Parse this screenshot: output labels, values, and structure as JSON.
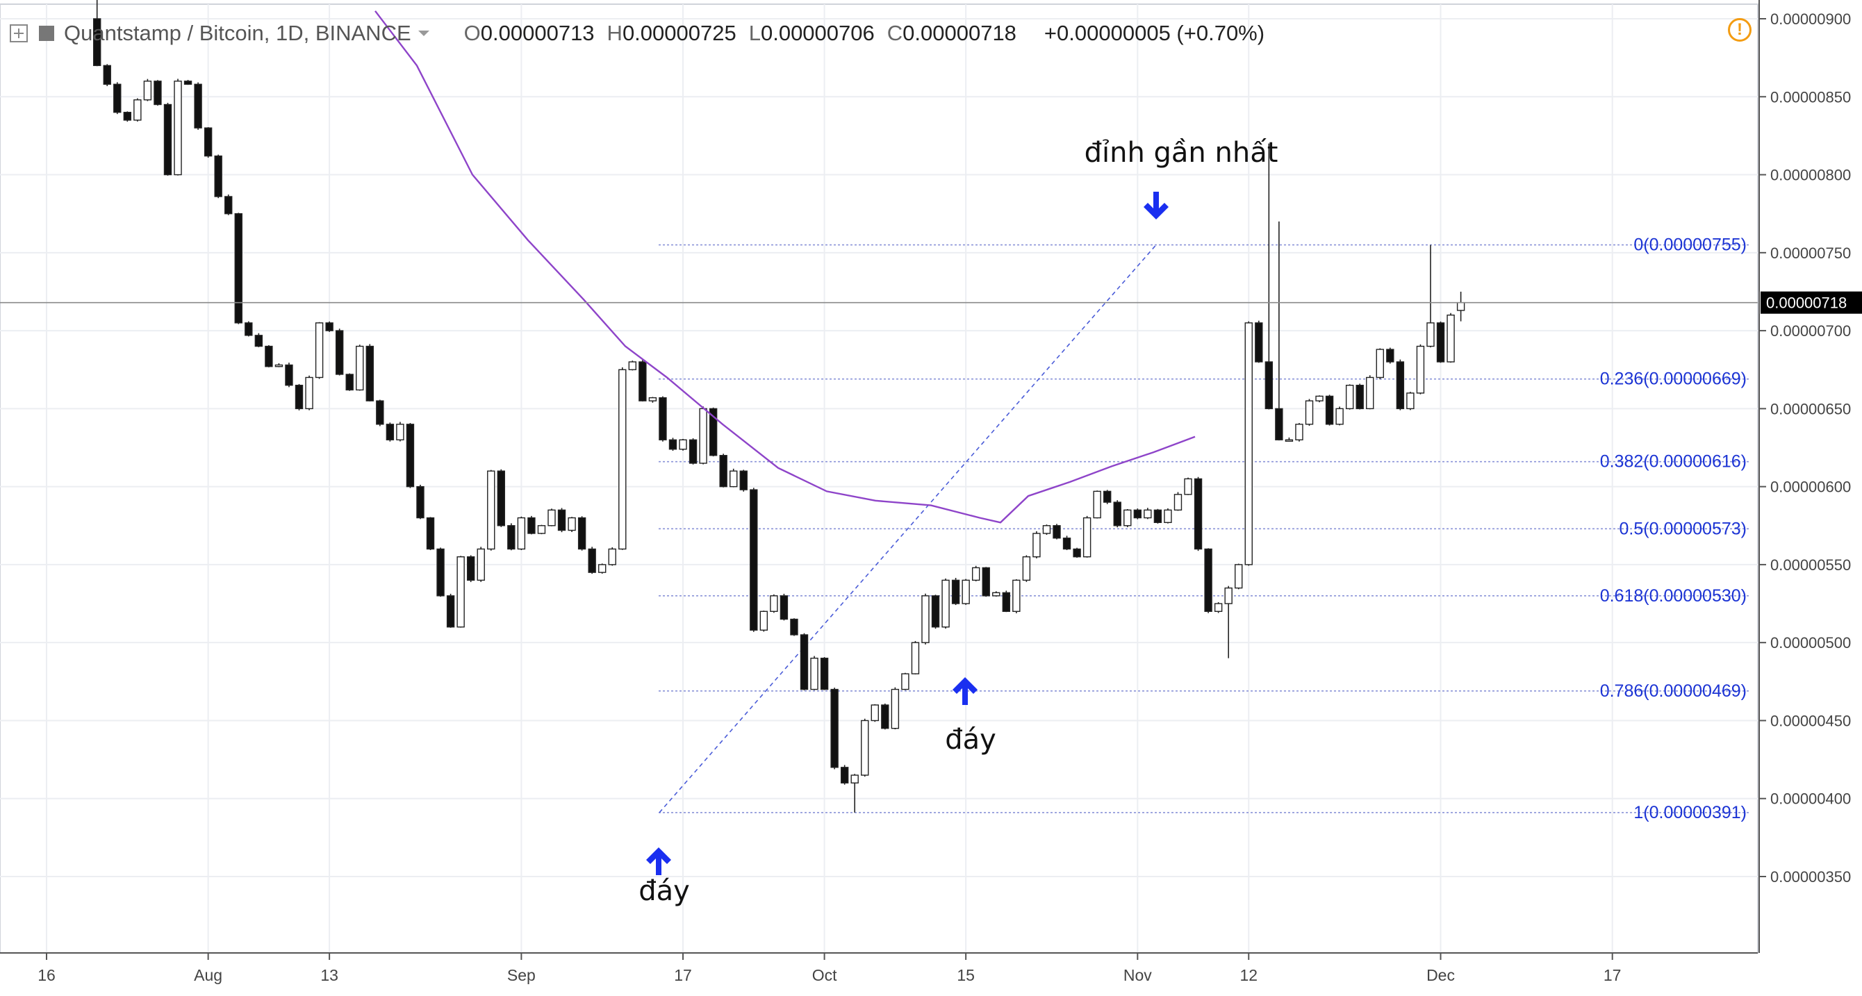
{
  "header": {
    "symbol": "Quantstamp / Bitcoin, 1D, BINANCE",
    "open_key": "O",
    "open": "0.00000713",
    "high_key": "H",
    "high": "0.00000725",
    "low_key": "L",
    "low": "0.00000706",
    "close_key": "C",
    "close": "0.00000718",
    "change": "+0.00000005 (+0.70%)"
  },
  "price_label": "0.00000718",
  "colors": {
    "ma_line": "#8e44c9",
    "fib_text": "#1c34d4",
    "arrow": "#1a2ff0",
    "candle_bear": "#111111",
    "warning": "#f39c12"
  },
  "annotations": {
    "peak": "đỉnh gần nhất",
    "bottom1": "đáy",
    "bottom2": "đáy"
  },
  "chart_data": {
    "type": "candlestick",
    "title": "Quantstamp / Bitcoin, 1D, BINANCE",
    "x_tick_labels": [
      "16",
      "Aug",
      "13",
      "Sep",
      "17",
      "Oct",
      "15",
      "Nov",
      "12",
      "Dec",
      "17"
    ],
    "y_tick_labels": [
      "0.00000900",
      "0.00000850",
      "0.00000800",
      "0.00000750",
      "0.00000700",
      "0.00000650",
      "0.00000600",
      "0.00000550",
      "0.00000500",
      "0.00000450",
      "0.00000400",
      "0.00000350"
    ],
    "ylim": [
      2.9e-06,
      9e-06
    ],
    "grid": true,
    "fibonacci": [
      {
        "label": "0(0.00000755)",
        "value": 7.55e-06
      },
      {
        "label": "0.236(0.00000669)",
        "value": 6.69e-06
      },
      {
        "label": "0.382(0.00000616)",
        "value": 6.16e-06
      },
      {
        "label": "0.5(0.00000573)",
        "value": 5.73e-06
      },
      {
        "label": "0.618(0.00000530)",
        "value": 5.3e-06
      },
      {
        "label": "0.786(0.00000469)",
        "value": 4.69e-06
      },
      {
        "label": "1(0.00000391)",
        "value": 3.91e-06
      }
    ],
    "last_price": 7.18e-06
  }
}
